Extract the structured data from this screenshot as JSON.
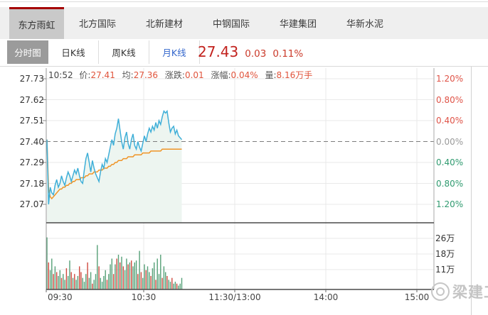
{
  "tabs": {
    "items": [
      {
        "label": "东方雨虹",
        "selected": true
      },
      {
        "label": "北方国际",
        "selected": false
      },
      {
        "label": "北新建材",
        "selected": false
      },
      {
        "label": "中钢国际",
        "selected": false
      },
      {
        "label": "华建集团",
        "selected": false
      },
      {
        "label": "华新水泥",
        "selected": false
      }
    ]
  },
  "subtabs": {
    "items": [
      {
        "label": "分时图",
        "selected": true
      },
      {
        "label": "日K线",
        "selected": false
      },
      {
        "label": "周K线",
        "selected": false
      },
      {
        "label": "月K线",
        "selected": false
      }
    ]
  },
  "quote": {
    "price": "27.43",
    "change": "0.03",
    "pct": "0.11%"
  },
  "info": {
    "time": "10:52",
    "price_label": "价:",
    "price": "27.41",
    "avg_label": "均:",
    "avg": "27.36",
    "change_label": "涨跌:",
    "change": "0.01",
    "pct_label": "涨幅:",
    "pct": "0.04%",
    "volume_label": "量:",
    "volume": "8.16万手"
  },
  "watermark": {
    "text": "梁建工",
    "icon": "logo-ring-icon"
  },
  "colors": {
    "accent_red": "#a50000",
    "price_red": "#c2221e",
    "value_red": "#e0543c",
    "pct_up": "#df5347",
    "pct_down": "#2f9a6f",
    "line_blue": "#3fafd8",
    "line_orange": "#ef9426",
    "area_fill": "#edf5f0",
    "vol_up": "#cf4a3f",
    "vol_down": "#55a077"
  },
  "chart_data": {
    "type": "line",
    "title": "东方雨虹 分时图",
    "x_axis": {
      "labels": [
        "09:30",
        "10:30",
        "11:30/13:00",
        "14:00",
        "15:00"
      ]
    },
    "price_axis": {
      "labels": [
        "27.73",
        "27.62",
        "27.51",
        "27.40",
        "27.29",
        "27.18",
        "27.07"
      ],
      "max": 27.73,
      "min": 27.07,
      "prev_close": 27.4
    },
    "pct_axis": {
      "labels": [
        "1.20%",
        "0.80%",
        "0.40%",
        "0.00%",
        "0.40%",
        "0.80%",
        "1.20%"
      ]
    },
    "volume_axis": {
      "labels": [
        "26万",
        "18万",
        "11万"
      ],
      "values": [
        26,
        18,
        11
      ]
    },
    "last_time": "10:52",
    "series": [
      {
        "name": "price",
        "color": "#3fafd8",
        "values": [
          27.41,
          27.07,
          27.16,
          27.13,
          27.12,
          27.17,
          27.2,
          27.16,
          27.18,
          27.22,
          27.19,
          27.17,
          27.21,
          27.24,
          27.22,
          27.19,
          27.22,
          27.25,
          27.23,
          27.26,
          27.22,
          27.19,
          27.18,
          27.25,
          27.31,
          27.34,
          27.29,
          27.24,
          27.3,
          27.26,
          27.23,
          27.21,
          27.19,
          27.24,
          27.28,
          27.26,
          27.31,
          27.29,
          27.33,
          27.37,
          27.41,
          27.38,
          27.44,
          27.47,
          27.52,
          27.46,
          27.4,
          27.36,
          27.42,
          27.45,
          27.39,
          27.36,
          27.41,
          27.44,
          27.38,
          27.36,
          27.4,
          27.37,
          27.35,
          27.39,
          27.43,
          27.4,
          27.44,
          27.47,
          27.45,
          27.48,
          27.46,
          27.5,
          27.47,
          27.51,
          27.49,
          27.53,
          27.56,
          27.55,
          27.56,
          27.5,
          27.45,
          27.47,
          27.48,
          27.44,
          27.46,
          27.43,
          27.42,
          27.41
        ]
      },
      {
        "name": "avg",
        "color": "#ef9426",
        "values": [
          27.41,
          27.15,
          27.11,
          27.1,
          27.11,
          27.12,
          27.13,
          27.14,
          27.15,
          27.15,
          27.16,
          27.16,
          27.17,
          27.17,
          27.18,
          27.18,
          27.19,
          27.19,
          27.2,
          27.2,
          27.2,
          27.21,
          27.21,
          27.21,
          27.22,
          27.22,
          27.23,
          27.23,
          27.23,
          27.24,
          27.24,
          27.24,
          27.25,
          27.25,
          27.25,
          27.26,
          27.26,
          27.26,
          27.27,
          27.27,
          27.28,
          27.28,
          27.29,
          27.29,
          27.3,
          27.3,
          27.3,
          27.31,
          27.31,
          27.31,
          27.32,
          27.32,
          27.32,
          27.32,
          27.33,
          27.33,
          27.33,
          27.33,
          27.33,
          27.34,
          27.34,
          27.34,
          27.34,
          27.34,
          27.35,
          27.35,
          27.35,
          27.35,
          27.35,
          27.35,
          27.35,
          27.36,
          27.36,
          27.36,
          27.36,
          27.36,
          27.36,
          27.36,
          27.36,
          27.36,
          27.36,
          27.36,
          27.36,
          27.36
        ]
      }
    ],
    "volume_bars": {
      "unit": "万手",
      "up_color": "#cf4a3f",
      "down_color": "#55a077",
      "bars": [
        [
          27,
          "g"
        ],
        [
          14,
          "r"
        ],
        [
          10,
          "g"
        ],
        [
          16,
          "g"
        ],
        [
          8,
          "r"
        ],
        [
          12,
          "g"
        ],
        [
          9,
          "r"
        ],
        [
          7,
          "g"
        ],
        [
          10,
          "g"
        ],
        [
          6,
          "r"
        ],
        [
          8,
          "g"
        ],
        [
          5,
          "g"
        ],
        [
          11,
          "r"
        ],
        [
          7,
          "g"
        ],
        [
          15,
          "g"
        ],
        [
          9,
          "r"
        ],
        [
          6,
          "g"
        ],
        [
          8,
          "r"
        ],
        [
          5,
          "g"
        ],
        [
          7,
          "g"
        ],
        [
          12,
          "r"
        ],
        [
          9,
          "r"
        ],
        [
          6,
          "g"
        ],
        [
          4,
          "g"
        ],
        [
          8,
          "g"
        ],
        [
          14,
          "r"
        ],
        [
          6,
          "g"
        ],
        [
          9,
          "g"
        ],
        [
          3,
          "r"
        ],
        [
          5,
          "g"
        ],
        [
          8,
          "g"
        ],
        [
          23,
          "g"
        ],
        [
          12,
          "r"
        ],
        [
          6,
          "g"
        ],
        [
          4,
          "g"
        ],
        [
          7,
          "g"
        ],
        [
          10,
          "g"
        ],
        [
          5,
          "r"
        ],
        [
          8,
          "g"
        ],
        [
          13,
          "g"
        ],
        [
          16,
          "g"
        ],
        [
          8,
          "r"
        ],
        [
          13,
          "g"
        ],
        [
          16,
          "r"
        ],
        [
          18,
          "g"
        ],
        [
          14,
          "r"
        ],
        [
          17,
          "g"
        ],
        [
          12,
          "r"
        ],
        [
          10,
          "g"
        ],
        [
          16,
          "g"
        ],
        [
          13,
          "r"
        ],
        [
          14,
          "g"
        ],
        [
          15,
          "r"
        ],
        [
          12,
          "g"
        ],
        [
          14,
          "g"
        ],
        [
          15,
          "g"
        ],
        [
          8,
          "r"
        ],
        [
          20,
          "g"
        ],
        [
          9,
          "r"
        ],
        [
          6,
          "g"
        ],
        [
          13,
          "g"
        ],
        [
          10,
          "r"
        ],
        [
          12,
          "g"
        ],
        [
          9,
          "g"
        ],
        [
          7,
          "r"
        ],
        [
          11,
          "g"
        ],
        [
          14,
          "g"
        ],
        [
          5,
          "r"
        ],
        [
          16,
          "g"
        ],
        [
          8,
          "g"
        ],
        [
          18,
          "g"
        ],
        [
          6,
          "r"
        ],
        [
          12,
          "g"
        ],
        [
          9,
          "g"
        ],
        [
          7,
          "r"
        ],
        [
          5,
          "g"
        ],
        [
          4,
          "g"
        ],
        [
          6,
          "r"
        ],
        [
          3,
          "g"
        ],
        [
          4,
          "g"
        ],
        [
          3,
          "r"
        ],
        [
          2,
          "g"
        ],
        [
          3,
          "g"
        ],
        [
          6,
          "g"
        ]
      ]
    }
  }
}
